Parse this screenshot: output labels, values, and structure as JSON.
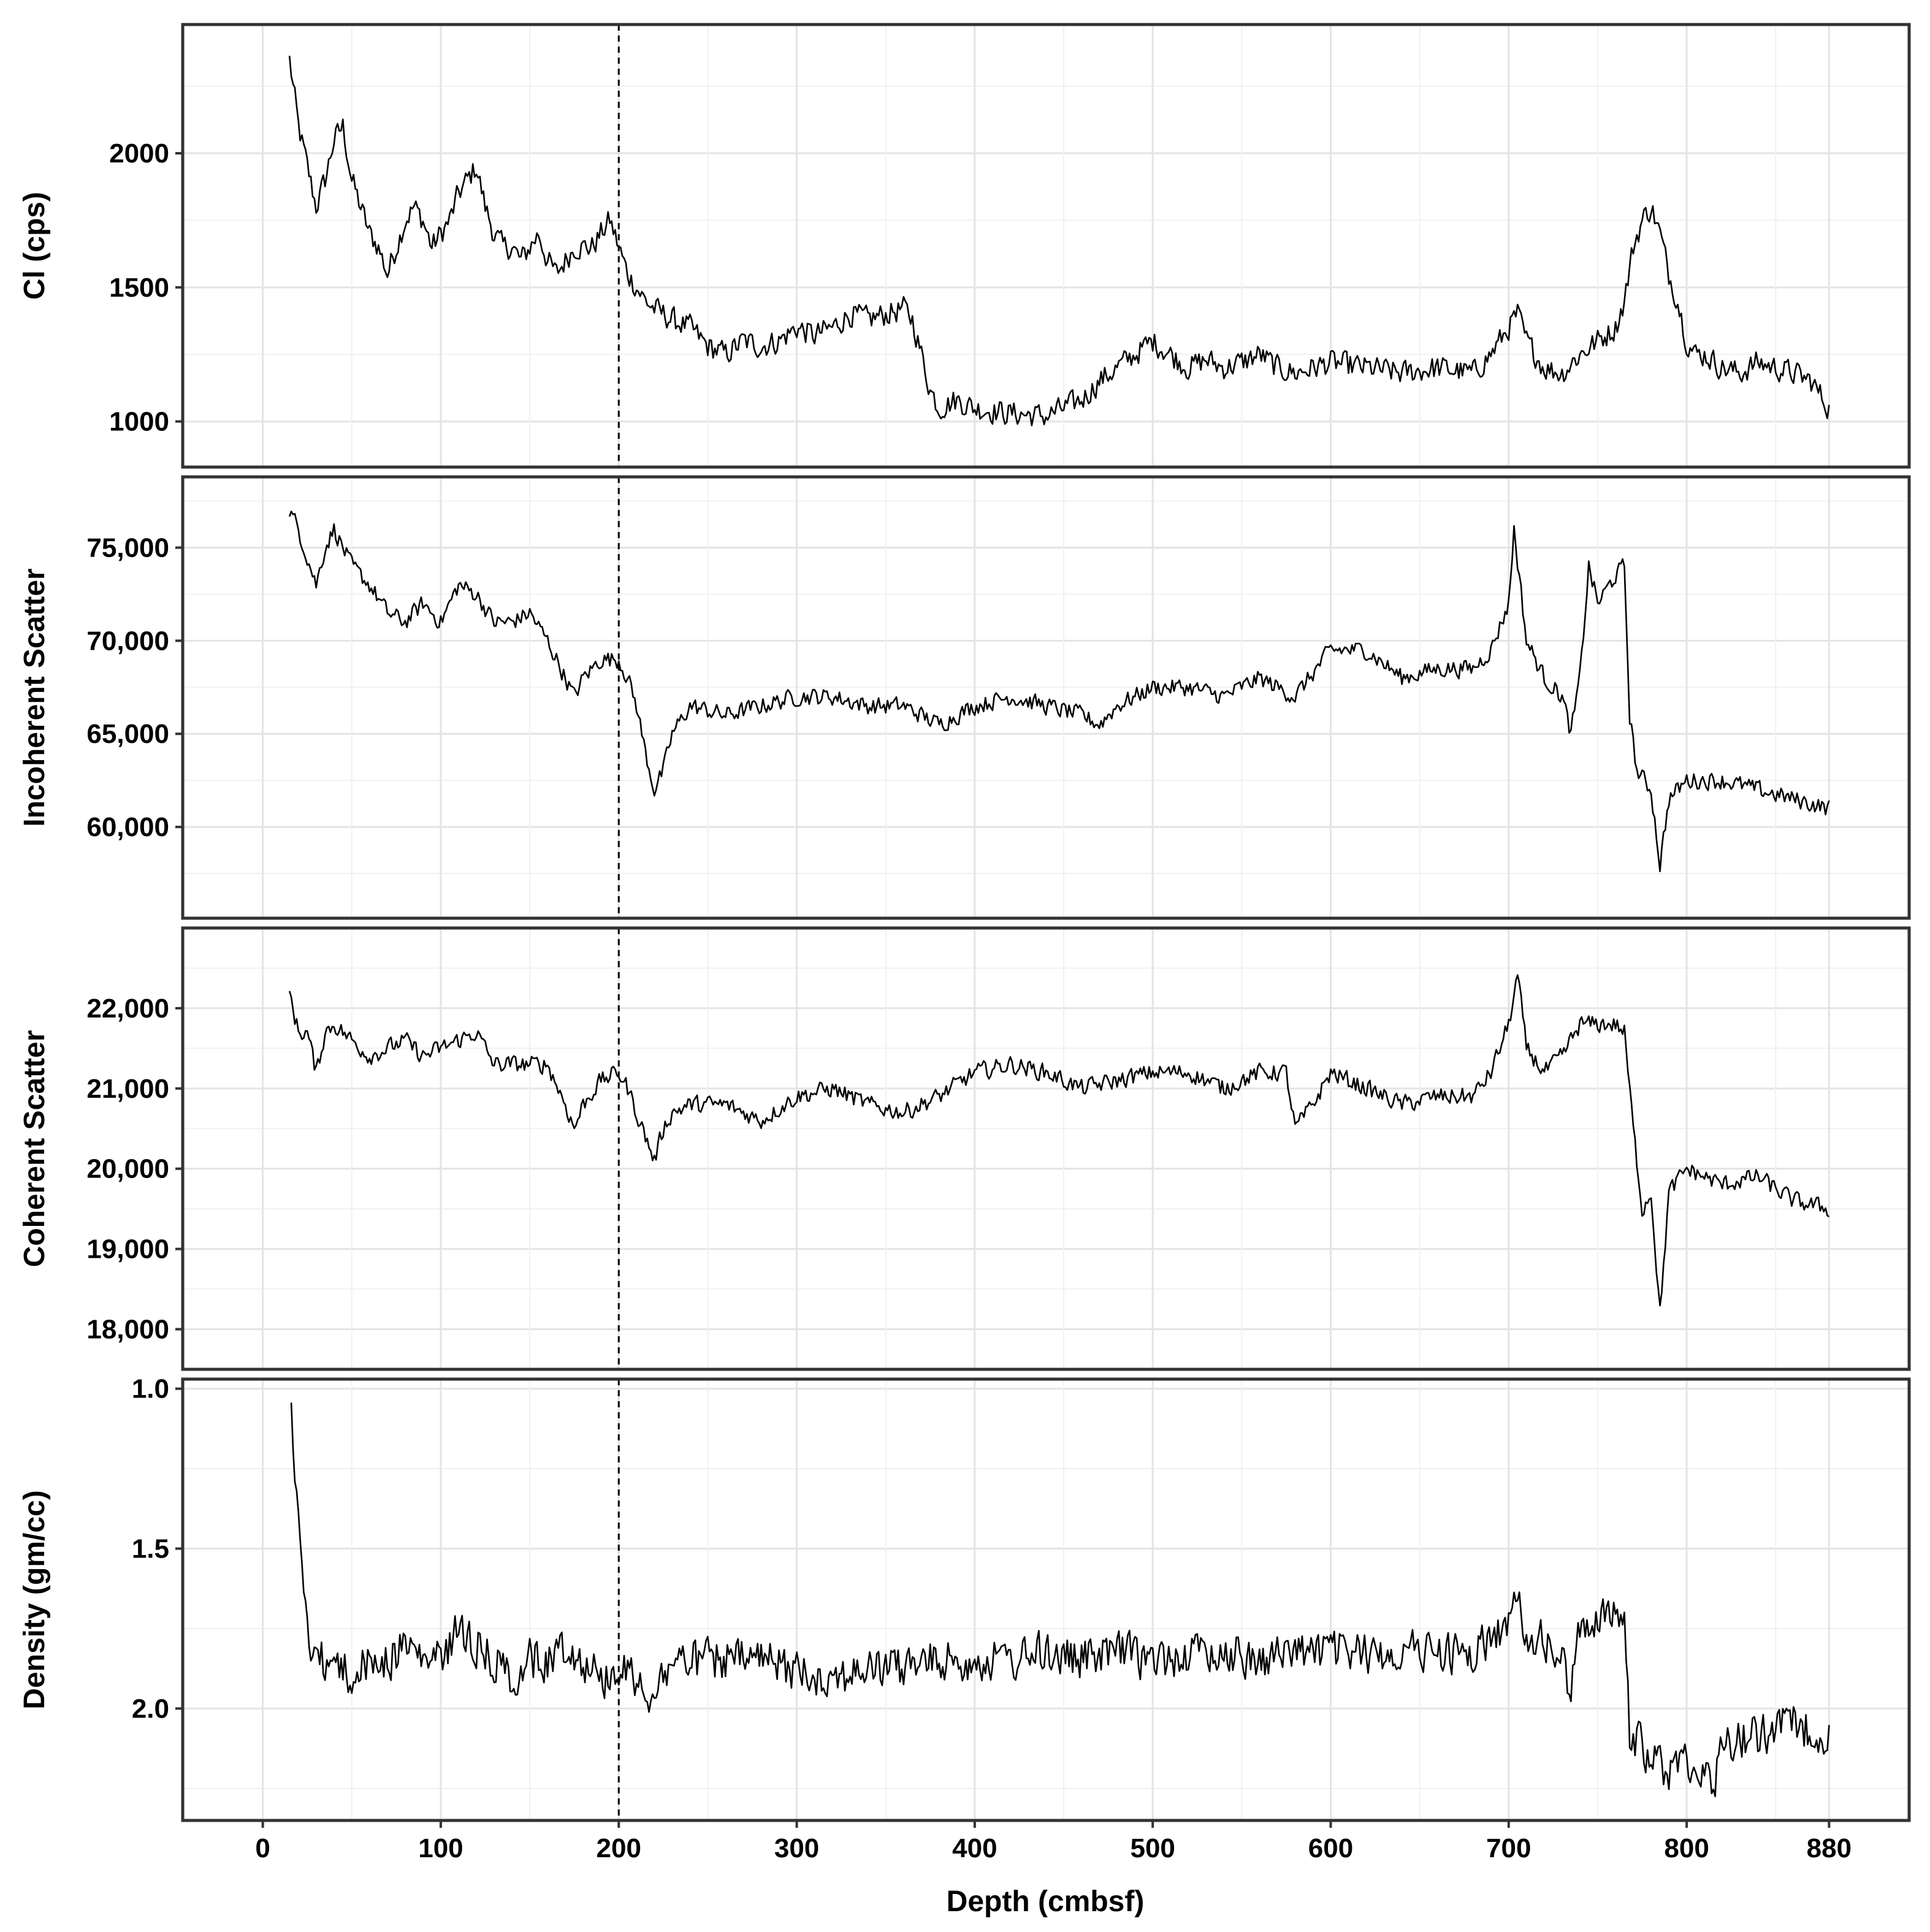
{
  "chart_data": {
    "type": "line",
    "shared_x": {
      "label": "Depth (cmbsf)",
      "range": [
        -45,
        925
      ],
      "tick_labels": [
        "0",
        "100",
        "200",
        "300",
        "400",
        "500",
        "600",
        "700",
        "800",
        "880"
      ],
      "tick_values": [
        0,
        100,
        200,
        300,
        400,
        500,
        600,
        700,
        800,
        880
      ]
    },
    "reference_line": {
      "x": 200,
      "style": "dashed",
      "color": "#000000"
    },
    "line_color": "#000000",
    "grid": true,
    "panels": [
      {
        "ylabel": "Cl (cps)",
        "ylim": [
          830,
          2480
        ],
        "reversed": false,
        "tick_labels": [
          "1000",
          "1500",
          "2000"
        ],
        "tick_values": [
          1000,
          1500,
          2000
        ],
        "noise": 0.07,
        "x": [
          15,
          20,
          25,
          30,
          35,
          40,
          45,
          50,
          55,
          60,
          65,
          70,
          75,
          80,
          85,
          90,
          95,
          100,
          105,
          110,
          115,
          120,
          125,
          130,
          135,
          140,
          145,
          150,
          155,
          160,
          165,
          170,
          175,
          180,
          185,
          190,
          195,
          200,
          205,
          210,
          215,
          220,
          225,
          230,
          240,
          250,
          260,
          270,
          280,
          290,
          300,
          310,
          320,
          330,
          340,
          350,
          360,
          365,
          370,
          375,
          380,
          390,
          400,
          420,
          440,
          460,
          470,
          480,
          490,
          500,
          510,
          520,
          530,
          540,
          550,
          560,
          570,
          580,
          590,
          600,
          620,
          640,
          660,
          680,
          690,
          700,
          705,
          710,
          720,
          730,
          740,
          750,
          760,
          765,
          770,
          775,
          780,
          785,
          790,
          795,
          800,
          805,
          810,
          820,
          830,
          840,
          850,
          860,
          870,
          875,
          880
        ],
        "y": [
          2350,
          2100,
          1950,
          1800,
          1900,
          2050,
          2100,
          1900,
          1800,
          1700,
          1650,
          1550,
          1650,
          1750,
          1800,
          1750,
          1650,
          1700,
          1750,
          1850,
          1900,
          1950,
          1800,
          1700,
          1650,
          1650,
          1600,
          1650,
          1700,
          1600,
          1550,
          1600,
          1650,
          1650,
          1650,
          1700,
          1750,
          1650,
          1550,
          1500,
          1450,
          1420,
          1400,
          1380,
          1350,
          1280,
          1250,
          1300,
          1280,
          1300,
          1350,
          1320,
          1350,
          1400,
          1380,
          1400,
          1420,
          1380,
          1250,
          1120,
          1050,
          1080,
          1050,
          1030,
          1020,
          1080,
          1150,
          1200,
          1250,
          1300,
          1250,
          1200,
          1230,
          1200,
          1220,
          1250,
          1200,
          1180,
          1200,
          1220,
          1200,
          1180,
          1200,
          1180,
          1250,
          1350,
          1400,
          1300,
          1200,
          1180,
          1250,
          1300,
          1350,
          1450,
          1650,
          1750,
          1800,
          1700,
          1550,
          1450,
          1300,
          1250,
          1250,
          1200,
          1180,
          1220,
          1200,
          1180,
          1150,
          1100,
          1050
        ]
      },
      {
        "ylabel": "Incoherent Scatter",
        "ylim": [
          55100,
          78800
        ],
        "reversed": false,
        "tick_labels": [
          "60,000",
          "65,000",
          "70,000",
          "75,000"
        ],
        "tick_values": [
          60000,
          65000,
          70000,
          75000
        ],
        "noise": 0.05,
        "x": [
          15,
          20,
          25,
          30,
          35,
          40,
          50,
          60,
          70,
          80,
          90,
          100,
          110,
          120,
          130,
          140,
          150,
          160,
          170,
          175,
          180,
          190,
          200,
          205,
          210,
          215,
          220,
          225,
          230,
          240,
          260,
          280,
          300,
          320,
          340,
          360,
          370,
          380,
          400,
          420,
          440,
          460,
          470,
          480,
          500,
          520,
          540,
          560,
          580,
          600,
          620,
          640,
          660,
          680,
          690,
          700,
          703,
          710,
          720,
          730,
          735,
          740,
          745,
          750,
          760,
          765,
          768,
          772,
          780,
          785,
          790,
          800,
          820,
          840,
          860,
          880
        ],
        "y": [
          77000,
          76000,
          74500,
          73000,
          75000,
          76000,
          74000,
          73000,
          71500,
          71000,
          72000,
          71000,
          73000,
          72500,
          71000,
          71000,
          71500,
          70000,
          68000,
          67000,
          68000,
          69000,
          69000,
          68000,
          66500,
          64000,
          62000,
          63000,
          65000,
          66500,
          66000,
          66500,
          67000,
          67000,
          66500,
          66500,
          66000,
          65500,
          66500,
          67000,
          66500,
          66000,
          65500,
          66500,
          67500,
          67500,
          67000,
          68000,
          67000,
          69500,
          69500,
          68000,
          68500,
          68500,
          69500,
          72000,
          76000,
          70000,
          68000,
          67000,
          65000,
          68000,
          74000,
          72000,
          73500,
          74000,
          66000,
          63000,
          62000,
          58000,
          61500,
          62500,
          62500,
          62000,
          61500,
          61000
        ]
      },
      {
        "ylabel": "Coherent Scatter",
        "ylim": [
          17500,
          23000
        ],
        "reversed": false,
        "tick_labels": [
          "18,000",
          "19,000",
          "20,000",
          "21,000",
          "22,000"
        ],
        "tick_values": [
          18000,
          19000,
          20000,
          21000,
          22000
        ],
        "noise": 0.05,
        "x": [
          15,
          20,
          25,
          30,
          35,
          40,
          50,
          60,
          70,
          80,
          90,
          100,
          110,
          120,
          130,
          140,
          150,
          160,
          170,
          175,
          180,
          190,
          200,
          205,
          210,
          215,
          220,
          225,
          230,
          240,
          260,
          280,
          300,
          320,
          340,
          360,
          380,
          400,
          420,
          440,
          460,
          480,
          500,
          520,
          540,
          560,
          575,
          580,
          590,
          600,
          620,
          640,
          660,
          680,
          690,
          700,
          705,
          710,
          720,
          730,
          740,
          750,
          760,
          765,
          770,
          775,
          780,
          785,
          790,
          800,
          820,
          840,
          860,
          880
        ],
        "y": [
          22200,
          21700,
          21700,
          21200,
          21700,
          21800,
          21600,
          21400,
          21500,
          21600,
          21400,
          21500,
          21600,
          21700,
          21300,
          21300,
          21300,
          21300,
          20800,
          20500,
          20800,
          21100,
          21200,
          21000,
          20700,
          20400,
          20100,
          20500,
          20700,
          20800,
          20800,
          20600,
          20900,
          21000,
          20800,
          20700,
          20900,
          21200,
          21300,
          21200,
          21000,
          21100,
          21200,
          21200,
          21000,
          21200,
          21200,
          20500,
          20800,
          21200,
          21000,
          20800,
          20900,
          20900,
          21200,
          21800,
          22400,
          21500,
          21200,
          21400,
          21800,
          21800,
          21800,
          21700,
          20500,
          19500,
          19700,
          18200,
          19700,
          20000,
          19800,
          19900,
          19600,
          19500
        ]
      },
      {
        "ylabel": "Density (gm/cc)",
        "ylim": [
          2.35,
          0.97
        ],
        "reversed": true,
        "tick_labels": [
          "1.0",
          "1.5",
          "2.0"
        ],
        "tick_values": [
          1.0,
          1.5,
          2.0
        ],
        "noise": 0.12,
        "x": [
          16,
          18,
          20,
          22,
          25,
          28,
          32,
          40,
          50,
          60,
          70,
          80,
          90,
          100,
          110,
          120,
          130,
          140,
          150,
          160,
          170,
          180,
          190,
          200,
          210,
          215,
          220,
          230,
          240,
          260,
          280,
          300,
          320,
          340,
          360,
          380,
          400,
          420,
          440,
          460,
          480,
          500,
          520,
          540,
          560,
          580,
          600,
          620,
          640,
          660,
          680,
          690,
          700,
          705,
          710,
          720,
          730,
          735,
          740,
          745,
          750,
          760,
          765,
          768,
          772,
          780,
          790,
          800,
          810,
          815,
          820,
          840,
          860,
          880
        ],
        "y": [
          1.02,
          1.3,
          1.4,
          1.55,
          1.75,
          1.8,
          1.85,
          1.85,
          1.9,
          1.85,
          1.85,
          1.8,
          1.85,
          1.85,
          1.75,
          1.8,
          1.85,
          1.9,
          1.85,
          1.85,
          1.8,
          1.85,
          1.9,
          1.88,
          1.9,
          1.95,
          1.95,
          1.85,
          1.85,
          1.85,
          1.85,
          1.88,
          1.9,
          1.88,
          1.87,
          1.85,
          1.85,
          1.85,
          1.82,
          1.85,
          1.82,
          1.85,
          1.83,
          1.82,
          1.85,
          1.82,
          1.82,
          1.83,
          1.82,
          1.82,
          1.83,
          1.78,
          1.73,
          1.68,
          1.75,
          1.8,
          1.85,
          1.95,
          1.75,
          1.73,
          1.7,
          1.72,
          1.72,
          2.1,
          2.1,
          2.15,
          2.2,
          2.15,
          2.2,
          2.25,
          2.1,
          2.08,
          2.05,
          2.08
        ]
      }
    ]
  }
}
